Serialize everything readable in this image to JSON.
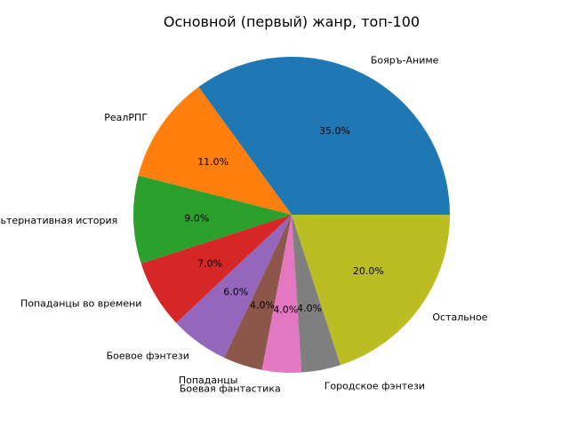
{
  "chart_data": {
    "type": "pie",
    "title": "Основной (первый) жанр, топ-100",
    "start_angle_deg": 0,
    "direction": "counterclockwise",
    "slices": [
      {
        "label": "Бояръ-Аниме",
        "value": 35.0,
        "pct_label": "35.0%",
        "color": "#1f77b4"
      },
      {
        "label": "РеалРПГ",
        "value": 11.0,
        "pct_label": "11.0%",
        "color": "#ff7f0e"
      },
      {
        "label": "Альтернативная история",
        "value": 9.0,
        "pct_label": "9.0%",
        "color": "#2ca02c"
      },
      {
        "label": "Попаданцы во времени",
        "value": 7.0,
        "pct_label": "7.0%",
        "color": "#d62728"
      },
      {
        "label": "Боевое фэнтези",
        "value": 6.0,
        "pct_label": "6.0%",
        "color": "#9467bd"
      },
      {
        "label": "Попаданцы",
        "value": 4.0,
        "pct_label": "4.0%",
        "color": "#8c564b"
      },
      {
        "label": "Боевая фантастика",
        "value": 4.0,
        "pct_label": "4.0%",
        "color": "#e377c2"
      },
      {
        "label": "Городское фэнтези",
        "value": 4.0,
        "pct_label": "4.0%",
        "color": "#7f7f7f"
      },
      {
        "label": "Остальное",
        "value": 20.0,
        "pct_label": "20.0%",
        "color": "#bcbd22"
      }
    ]
  }
}
